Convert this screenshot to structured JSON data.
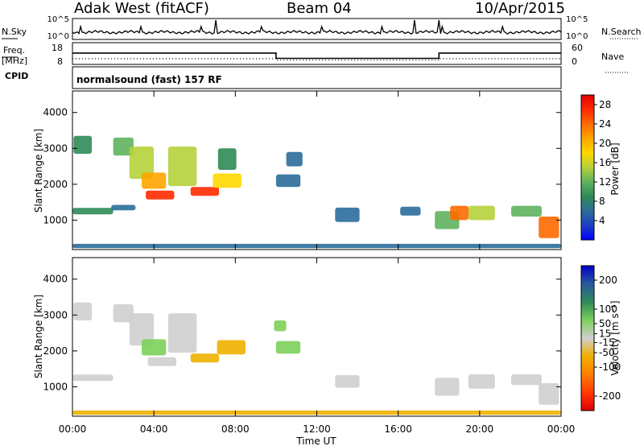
{
  "header": {
    "station": "Adak West (fitACF)",
    "beam": "Beam 04",
    "date": "10/Apr/2015"
  },
  "status_panel": {
    "nsky_label": "N.Sky",
    "nsearch_label": "N.Search",
    "noise_ticks": [
      "10^5",
      "10^0"
    ],
    "freq_label": "Freq.",
    "freq_unit": "[MHz]",
    "freq_ticks": [
      "18",
      "8"
    ],
    "nave_label": "Nave",
    "nave_ticks": [
      "60",
      "0"
    ],
    "cpid_label": "CPID",
    "cpid_text": "normalsound (fast) 157 RF",
    "freq_steps": [
      {
        "t_start": 0.0,
        "t_end": 10.0,
        "value": 13.5
      },
      {
        "t_start": 10.0,
        "t_end": 18.0,
        "value": 10.5
      },
      {
        "t_start": 18.0,
        "t_end": 24.0,
        "value": 13.5
      }
    ],
    "nave_steps": [
      {
        "t_start": 0.0,
        "t_end": 10.0,
        "value": 14
      },
      {
        "t_start": 10.0,
        "t_end": 18.0,
        "value": 9
      },
      {
        "t_start": 18.0,
        "t_end": 24.0,
        "value": 14
      }
    ]
  },
  "chart_data": [
    {
      "type": "heatmap",
      "title": "",
      "xlabel": "Time UT",
      "ylabel": "Slant Range [km]",
      "xlim": [
        0,
        24
      ],
      "ylim": [
        180,
        4600
      ],
      "x_ticks": [
        "00:00",
        "04:00",
        "08:00",
        "12:00",
        "16:00",
        "20:00",
        "00:00"
      ],
      "y_ticks": [
        "1000",
        "2000",
        "3000",
        "4000"
      ],
      "colorbar": {
        "label": "Power [dB]",
        "ticks": [
          "28",
          "24",
          "20",
          "16",
          "12",
          "8",
          "4"
        ],
        "range": [
          0,
          30
        ],
        "colors": [
          "#0000ff",
          "#1f3fc4",
          "#2a6d9a",
          "#2e8b57",
          "#5fb35f",
          "#b5d13a",
          "#ffd700",
          "#ffa500",
          "#ff6a00",
          "#ff2a00",
          "#e00000"
        ]
      },
      "features": [
        {
          "x": 0.5,
          "y": 3100,
          "w": 0.9,
          "h": 500,
          "value": 10
        },
        {
          "x": 2.5,
          "y": 3050,
          "w": 1.0,
          "h": 500,
          "value": 12
        },
        {
          "x": 3.4,
          "y": 2600,
          "w": 1.2,
          "h": 900,
          "value": 14
        },
        {
          "x": 4.0,
          "y": 2100,
          "w": 1.2,
          "h": 450,
          "value": 20
        },
        {
          "x": 4.3,
          "y": 1700,
          "w": 1.4,
          "h": 250,
          "value": 26
        },
        {
          "x": 5.4,
          "y": 2500,
          "w": 1.4,
          "h": 1100,
          "value": 14
        },
        {
          "x": 6.5,
          "y": 1800,
          "w": 1.4,
          "h": 250,
          "value": 26
        },
        {
          "x": 7.6,
          "y": 2100,
          "w": 1.4,
          "h": 400,
          "value": 18
        },
        {
          "x": 7.6,
          "y": 2700,
          "w": 0.9,
          "h": 600,
          "value": 10
        },
        {
          "x": 1.0,
          "y": 1250,
          "w": 2.0,
          "h": 180,
          "value": 10
        },
        {
          "x": 2.5,
          "y": 1350,
          "w": 1.2,
          "h": 150,
          "value": 8
        },
        {
          "x": 10.6,
          "y": 2100,
          "w": 1.2,
          "h": 350,
          "value": 8
        },
        {
          "x": 10.9,
          "y": 2700,
          "w": 0.8,
          "h": 400,
          "value": 6
        },
        {
          "x": 13.5,
          "y": 1150,
          "w": 1.2,
          "h": 400,
          "value": 8
        },
        {
          "x": 16.6,
          "y": 1250,
          "w": 1.0,
          "h": 250,
          "value": 7
        },
        {
          "x": 18.4,
          "y": 1000,
          "w": 1.2,
          "h": 500,
          "value": 12
        },
        {
          "x": 19.0,
          "y": 1200,
          "w": 0.9,
          "h": 400,
          "value": 22
        },
        {
          "x": 20.1,
          "y": 1200,
          "w": 1.3,
          "h": 400,
          "value": 14
        },
        {
          "x": 22.3,
          "y": 1250,
          "w": 1.5,
          "h": 300,
          "value": 12
        },
        {
          "x": 23.4,
          "y": 800,
          "w": 1.0,
          "h": 600,
          "value": 24
        },
        {
          "x": 12.0,
          "y": 280,
          "w": 24.0,
          "h": 120,
          "value": 8
        }
      ]
    },
    {
      "type": "heatmap",
      "title": "",
      "xlabel": "Time UT",
      "ylabel": "Slant Range [km]",
      "xlim": [
        0,
        24
      ],
      "ylim": [
        180,
        4600
      ],
      "x_ticks": [
        "00:00",
        "04:00",
        "08:00",
        "12:00",
        "16:00",
        "20:00",
        "00:00"
      ],
      "y_ticks": [
        "1000",
        "2000",
        "3000",
        "4000"
      ],
      "colorbar": {
        "label": "Velocity [m s⁻¹]",
        "ticks": [
          "200",
          "100",
          "50",
          "15",
          "-15",
          "-50",
          "-100",
          "-200"
        ],
        "range": [
          -250,
          250
        ],
        "colors": [
          "#e00000",
          "#ff3a00",
          "#ff7f00",
          "#f0b000",
          "#cfcfcf",
          "#7cd05a",
          "#2e8b57",
          "#2a5aa0",
          "#0000c8"
        ]
      },
      "features": [
        {
          "x": 0.5,
          "y": 3100,
          "w": 0.9,
          "h": 500,
          "value": 0
        },
        {
          "x": 2.5,
          "y": 3050,
          "w": 1.0,
          "h": 500,
          "value": 0
        },
        {
          "x": 3.4,
          "y": 2600,
          "w": 1.2,
          "h": 900,
          "value": 0
        },
        {
          "x": 4.0,
          "y": 2100,
          "w": 1.2,
          "h": 450,
          "value": 40
        },
        {
          "x": 4.4,
          "y": 1700,
          "w": 1.4,
          "h": 250,
          "value": 0
        },
        {
          "x": 5.4,
          "y": 2500,
          "w": 1.4,
          "h": 1100,
          "value": 0
        },
        {
          "x": 6.5,
          "y": 1800,
          "w": 1.4,
          "h": 250,
          "value": -30
        },
        {
          "x": 7.8,
          "y": 2100,
          "w": 1.4,
          "h": 400,
          "value": -40
        },
        {
          "x": 1.0,
          "y": 1250,
          "w": 2.0,
          "h": 180,
          "value": 0
        },
        {
          "x": 10.6,
          "y": 2100,
          "w": 1.2,
          "h": 350,
          "value": 40
        },
        {
          "x": 10.2,
          "y": 2700,
          "w": 0.6,
          "h": 300,
          "value": 40
        },
        {
          "x": 13.5,
          "y": 1150,
          "w": 1.2,
          "h": 350,
          "value": 0
        },
        {
          "x": 18.4,
          "y": 1000,
          "w": 1.2,
          "h": 500,
          "value": 0
        },
        {
          "x": 20.1,
          "y": 1150,
          "w": 1.3,
          "h": 400,
          "value": 0
        },
        {
          "x": 22.3,
          "y": 1200,
          "w": 1.5,
          "h": 300,
          "value": 0
        },
        {
          "x": 23.4,
          "y": 800,
          "w": 1.0,
          "h": 600,
          "value": 0
        },
        {
          "x": 12.0,
          "y": 280,
          "w": 24.0,
          "h": 120,
          "value": -30
        }
      ]
    }
  ]
}
